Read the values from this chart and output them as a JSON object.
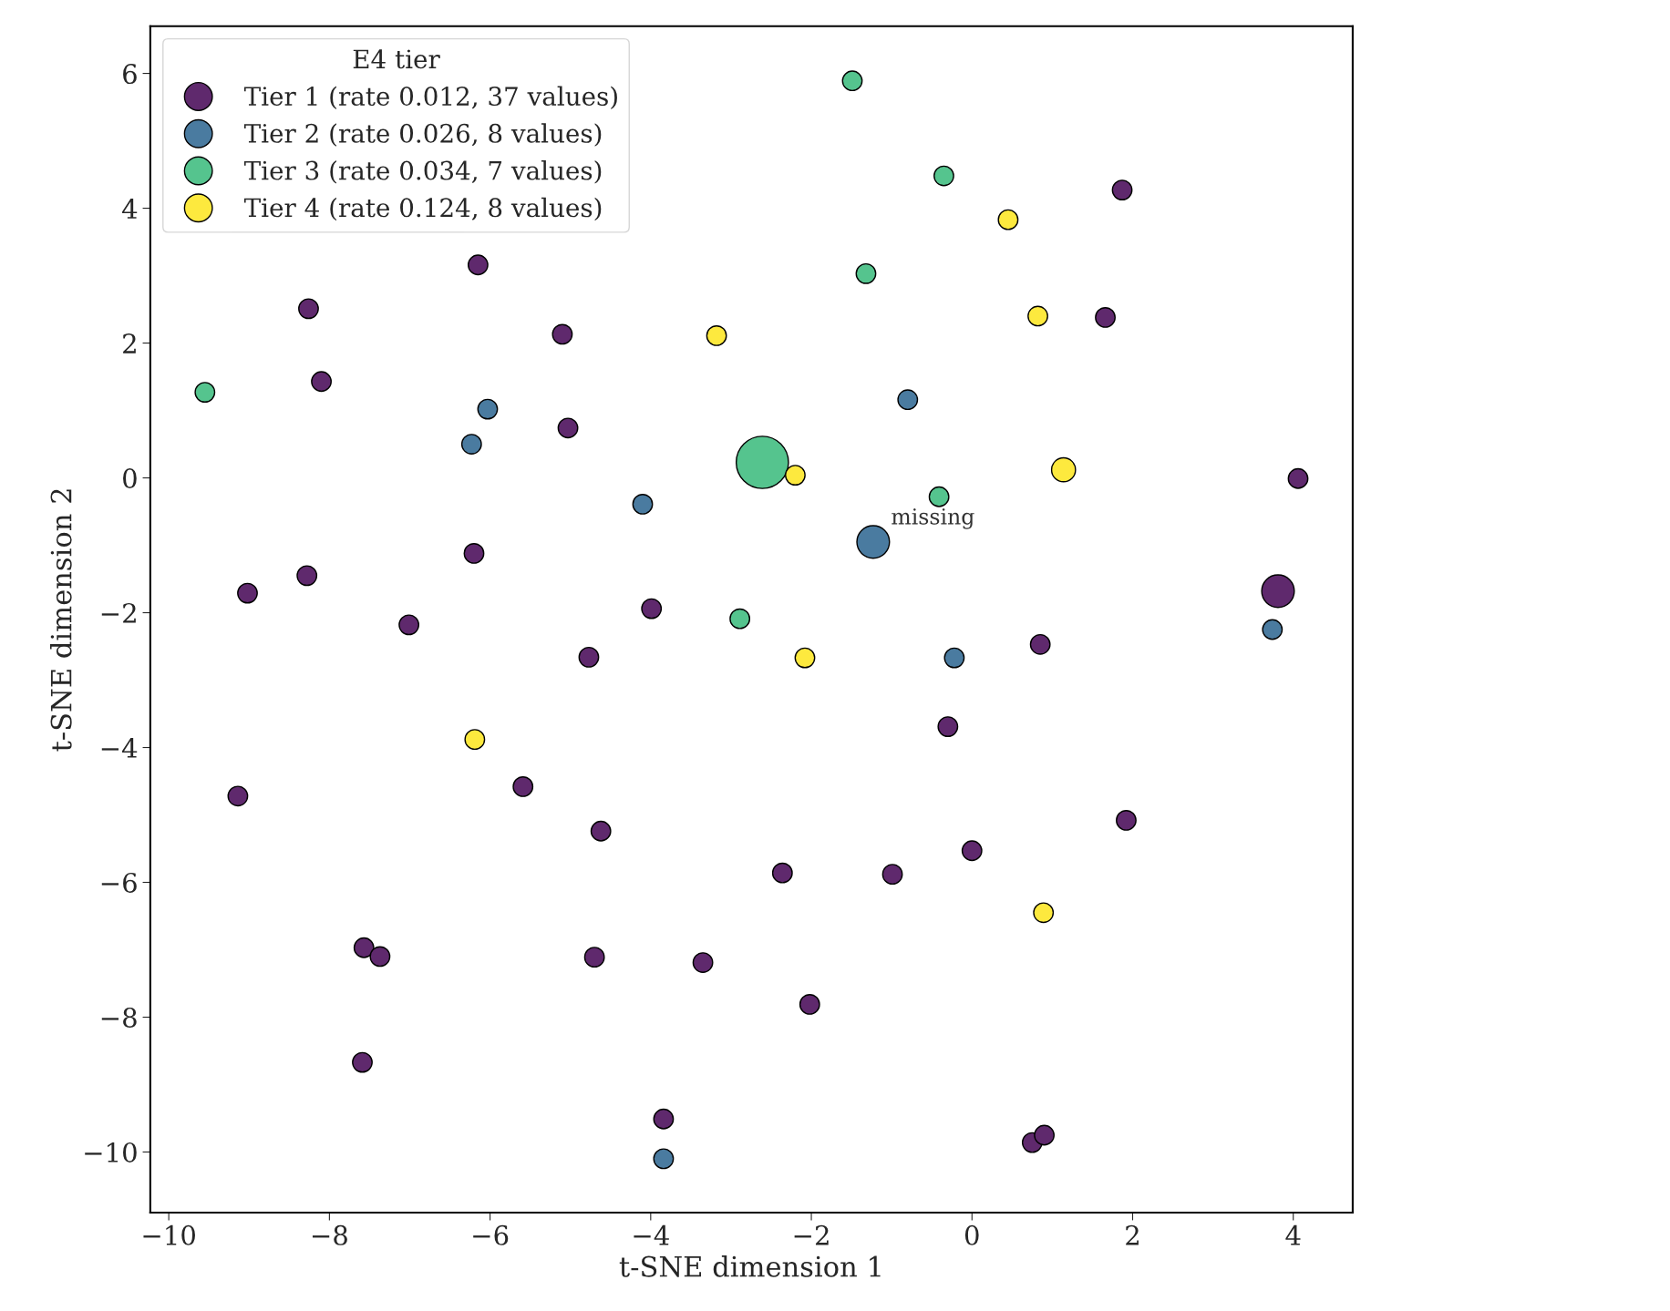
{
  "chart_data": {
    "type": "bubble",
    "xlabel": "t-SNE dimension 1",
    "ylabel": "t-SNE dimension 2",
    "legend_title": "E4 tier",
    "legend": "top left",
    "grid": false,
    "marker": "circle",
    "xlim": [
      -10.23,
      4.74
    ],
    "ylim": [
      -10.9,
      6.7
    ],
    "xticks": [
      {
        "value": -10,
        "label": "−10"
      },
      {
        "value": -8,
        "label": "−8"
      },
      {
        "value": -6,
        "label": "−6"
      },
      {
        "value": -4,
        "label": "−4"
      },
      {
        "value": -2,
        "label": "−2"
      },
      0,
      2,
      4
    ],
    "yticks": [
      {
        "value": -10,
        "label": "−10"
      },
      {
        "value": -8,
        "label": "−8"
      },
      {
        "value": -6,
        "label": "−6"
      },
      {
        "value": -4,
        "label": "−4"
      },
      {
        "value": -2,
        "label": "−2"
      },
      0,
      2,
      4,
      6
    ],
    "annotations": [
      {
        "text": "missing",
        "x": -1.23,
        "y": -0.95
      }
    ],
    "series": [
      {
        "name": "Tier 1 (rate 0.012, 37 values)",
        "color": "#5f296d",
        "x": [
          1.87,
          1.66,
          -8.26,
          -8.1,
          -5.1,
          -5.03,
          -6.15,
          4.06,
          3.81,
          -6.2,
          -8.28,
          -9.02,
          -7.01,
          -3.99,
          -4.77,
          0.85,
          -0.3,
          -5.59,
          -9.14,
          -4.62,
          1.92,
          -2.36,
          -0.99,
          0.0,
          -7.57,
          -7.37,
          -4.7,
          -3.35,
          -2.02,
          -7.59,
          -3.84,
          0.75,
          0.9
        ],
        "values": [
          4.27,
          2.38,
          2.51,
          1.43,
          2.13,
          0.74,
          3.16,
          -0.01,
          -1.68,
          -1.12,
          -1.45,
          -1.71,
          -2.18,
          -1.94,
          -2.66,
          -2.47,
          -3.69,
          -4.58,
          -4.72,
          -5.24,
          -5.08,
          -5.86,
          -5.88,
          -5.53,
          -6.97,
          -7.1,
          -7.11,
          -7.19,
          -7.81,
          -8.67,
          -9.51,
          -9.86,
          -9.75
        ],
        "sizes": [
          0.14,
          0.14,
          0.14,
          0.14,
          0.14,
          0.14,
          0.14,
          0.14,
          0.39,
          0.14,
          0.14,
          0.14,
          0.14,
          0.14,
          0.14,
          0.14,
          0.14,
          0.14,
          0.14,
          0.14,
          0.14,
          0.14,
          0.14,
          0.14,
          0.14,
          0.14,
          0.14,
          0.14,
          0.14,
          0.14,
          0.14,
          0.14,
          0.14
        ]
      },
      {
        "name": "Tier 2 (rate 0.026, 8 values)",
        "color": "#4a7ba0",
        "x": [
          -6.03,
          -6.23,
          -4.1,
          -0.8,
          -1.23,
          3.74,
          -0.22,
          -3.84
        ],
        "values": [
          1.02,
          0.5,
          -0.39,
          1.16,
          -0.95,
          -2.25,
          -2.67,
          -10.1
        ],
        "sizes": [
          0.14,
          0.14,
          0.14,
          0.14,
          0.39,
          0.14,
          0.14,
          0.14
        ]
      },
      {
        "name": "Tier 3 (rate 0.034, 7 values)",
        "color": "#55c48e",
        "x": [
          -1.49,
          -0.35,
          -1.32,
          -9.55,
          -2.61,
          -0.41,
          -2.89
        ],
        "values": [
          5.89,
          4.48,
          3.03,
          1.27,
          0.23,
          -0.28,
          -2.09
        ],
        "sizes": [
          0.14,
          0.14,
          0.14,
          0.14,
          1,
          0.14,
          0.14
        ]
      },
      {
        "name": "Tier 4 (rate 0.124, 8 values)",
        "color": "#fde93e",
        "x": [
          0.45,
          0.82,
          -3.18,
          -2.2,
          1.14,
          -2.08,
          -6.19,
          0.89
        ],
        "values": [
          3.83,
          2.4,
          2.11,
          0.04,
          0.12,
          -2.67,
          -3.88,
          -6.45
        ],
        "sizes": [
          0.14,
          0.14,
          0.14,
          0.14,
          0.21,
          0.14,
          0.14,
          0.14
        ]
      }
    ]
  }
}
